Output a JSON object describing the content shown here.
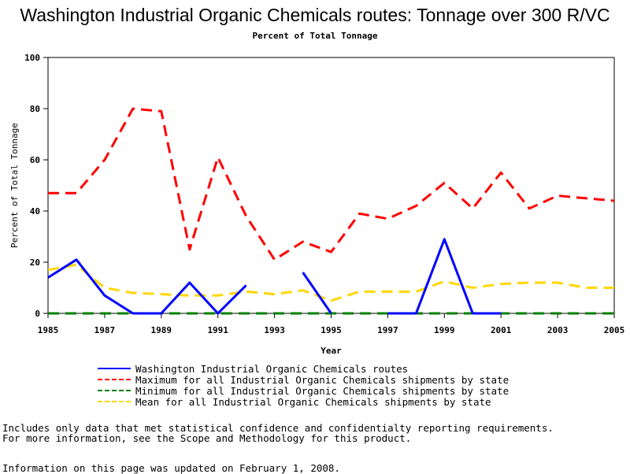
{
  "title": "Washington Industrial Organic Chemicals routes: Tonnage over 300 R/VC",
  "subtitle": "Percent of Total Tonnage",
  "footnotes": {
    "line1": "Includes only data that met statistical confidence and confidentialty reporting requirements.",
    "line2": "For more information, see the Scope and Methodology for this product.",
    "line3": "Information on this page was updated on February 1, 2008."
  },
  "chart_data": {
    "type": "line",
    "xlabel": "Year",
    "ylabel": "Percent of Total Tonnage",
    "xlim": [
      1985,
      2005
    ],
    "ylim": [
      0,
      100
    ],
    "x_ticks": [
      1985,
      1987,
      1989,
      1991,
      1993,
      1995,
      1997,
      1999,
      2001,
      2003,
      2005
    ],
    "y_ticks": [
      0,
      20,
      40,
      60,
      80,
      100
    ],
    "grid": false,
    "legend_position": "bottom",
    "series": [
      {
        "name": "Washington Industrial Organic Chemicals routes",
        "color": "#0000ff",
        "style": "solid",
        "points": [
          [
            1985,
            14
          ],
          [
            1986,
            21
          ],
          [
            1987,
            7
          ],
          [
            1988,
            0
          ],
          [
            1989,
            0
          ],
          [
            1990,
            12
          ],
          [
            1991,
            0
          ],
          [
            1992,
            11
          ],
          null,
          [
            1994,
            16
          ],
          [
            1995,
            0
          ],
          null,
          [
            1997,
            0
          ],
          [
            1998,
            0
          ],
          [
            1999,
            29
          ],
          [
            2000,
            0
          ],
          [
            2001,
            0
          ]
        ]
      },
      {
        "name": "Maximum for all Industrial Organic Chemicals shipments by state",
        "color": "#ff0000",
        "style": "dashed",
        "points": [
          [
            1985,
            47
          ],
          [
            1986,
            47
          ],
          [
            1987,
            60
          ],
          [
            1988,
            80
          ],
          [
            1989,
            79
          ],
          [
            1990,
            25
          ],
          [
            1991,
            61
          ],
          [
            1992,
            38
          ],
          [
            1993,
            21
          ],
          [
            1994,
            28
          ],
          [
            1995,
            24
          ],
          [
            1996,
            39
          ],
          [
            1997,
            37
          ],
          [
            1998,
            42
          ],
          [
            1999,
            51
          ],
          [
            2000,
            41
          ],
          [
            2001,
            55
          ],
          [
            2002,
            41
          ],
          [
            2003,
            46
          ],
          [
            2004,
            45
          ],
          [
            2005,
            44
          ]
        ]
      },
      {
        "name": "Minimum for all Industrial Organic Chemicals shipments by state",
        "color": "#008000",
        "style": "dashed",
        "points": [
          [
            1985,
            0
          ],
          [
            1986,
            0
          ],
          [
            1987,
            0
          ],
          [
            1988,
            0
          ],
          [
            1989,
            0
          ],
          [
            1990,
            0
          ],
          [
            1991,
            0
          ],
          [
            1992,
            0
          ],
          [
            1993,
            0
          ],
          [
            1994,
            0
          ],
          [
            1995,
            0
          ],
          [
            1996,
            0
          ],
          [
            1997,
            0
          ],
          [
            1998,
            0
          ],
          [
            1999,
            0
          ],
          [
            2000,
            0
          ],
          [
            2001,
            0
          ],
          [
            2002,
            0
          ],
          [
            2003,
            0
          ],
          [
            2004,
            0
          ],
          [
            2005,
            0
          ]
        ]
      },
      {
        "name": "Mean for all Industrial Organic Chemicals shipments by state",
        "color": "#ffd700",
        "style": "dashed",
        "points": [
          [
            1985,
            17
          ],
          [
            1986,
            19
          ],
          [
            1987,
            10
          ],
          [
            1988,
            8
          ],
          [
            1989,
            7.5
          ],
          [
            1990,
            7
          ],
          [
            1991,
            7
          ],
          [
            1992,
            8.5
          ],
          [
            1993,
            7.5
          ],
          [
            1994,
            9
          ],
          [
            1995,
            5
          ],
          [
            1996,
            8.5
          ],
          [
            1997,
            8.5
          ],
          [
            1998,
            8.5
          ],
          [
            1999,
            12.5
          ],
          [
            2000,
            10
          ],
          [
            2001,
            11.5
          ],
          [
            2002,
            12
          ],
          [
            2003,
            12
          ],
          [
            2004,
            10
          ],
          [
            2005,
            10
          ]
        ]
      }
    ]
  }
}
